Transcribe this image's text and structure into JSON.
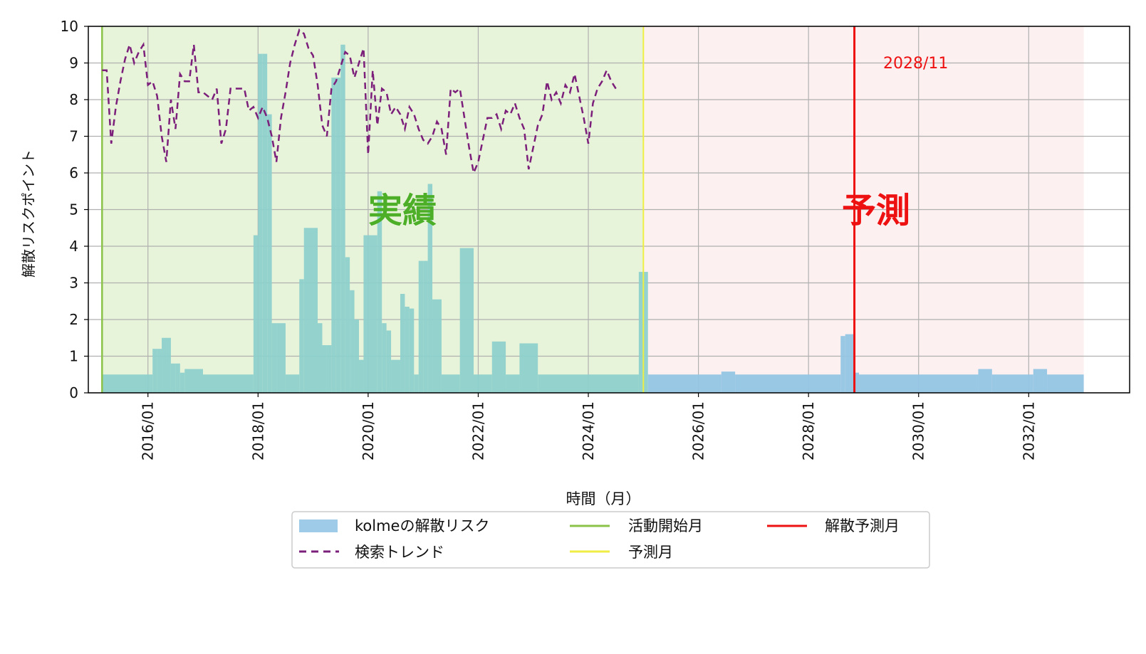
{
  "chart_data": {
    "type": "bar",
    "ylabel": "解散リスクポイント",
    "xlabel": "時間（月）",
    "ylim": [
      0,
      10
    ],
    "xlim": [
      "2014-12",
      "2033-11"
    ],
    "yticks": [
      0,
      1,
      2,
      3,
      4,
      5,
      6,
      7,
      8,
      9,
      10
    ],
    "xticks": [
      "2016/01",
      "2018/01",
      "2020/01",
      "2022/01",
      "2024/01",
      "2026/01",
      "2028/01",
      "2030/01",
      "2032/01"
    ],
    "grid": true,
    "legend_position": "bottom-center",
    "region_labels": {
      "actual": "実績",
      "forecast": "予測"
    },
    "activity_start_month": "2015-03",
    "forecast_start_month": "2025-01",
    "dissolution_forecast_month": "2028-11",
    "dissolution_forecast_label": "2028/11",
    "colors": {
      "actual_region": "#e8f4da",
      "forecast_region": "#fdf0f0",
      "actual_bar": "#8ed0cc",
      "forecast_bar": "#94c5e4",
      "trend_line": "#7b1f7b",
      "activity_start_line": "#8bc34a",
      "forecast_start_line": "#eeee44",
      "dissolution_line": "#ee1111",
      "actual_label": "#4caf27",
      "forecast_label": "#ee1111"
    },
    "legend": [
      {
        "key": "risk",
        "label": "kolmeの解散リスク"
      },
      {
        "key": "trend",
        "label": "検索トレンド"
      },
      {
        "key": "start",
        "label": "活動開始月"
      },
      {
        "key": "forecast",
        "label": "予測月"
      },
      {
        "key": "dissolution",
        "label": "解散予測月"
      }
    ],
    "risk_series": {
      "name": "kolmeの解散リスク",
      "segments": [
        {
          "from": "2015-03",
          "to": "2016-01",
          "value": 0.5
        },
        {
          "from": "2016-02",
          "value": 1.2
        },
        {
          "from": "2016-03",
          "value": 1.2
        },
        {
          "from": "2016-04",
          "value": 1.5
        },
        {
          "from": "2016-05",
          "value": 1.5
        },
        {
          "from": "2016-06",
          "value": 0.8
        },
        {
          "from": "2016-07",
          "value": 0.8
        },
        {
          "from": "2016-08",
          "value": 0.55
        },
        {
          "from": "2016-09",
          "to": "2016-12",
          "value": 0.65
        },
        {
          "from": "2017-01",
          "to": "2017-11",
          "value": 0.5
        },
        {
          "from": "2017-12",
          "value": 4.3
        },
        {
          "from": "2018-01",
          "value": 9.25
        },
        {
          "from": "2018-02",
          "value": 9.25
        },
        {
          "from": "2018-03",
          "value": 7.6
        },
        {
          "from": "2018-04",
          "value": 1.9
        },
        {
          "from": "2018-05",
          "to": "2018-06",
          "value": 1.9
        },
        {
          "from": "2018-07",
          "to": "2018-09",
          "value": 0.5
        },
        {
          "from": "2018-10",
          "value": 3.1
        },
        {
          "from": "2018-11",
          "to": "2019-01",
          "value": 4.5
        },
        {
          "from": "2019-02",
          "value": 1.9
        },
        {
          "from": "2019-03",
          "value": 1.3
        },
        {
          "from": "2019-04",
          "value": 1.3
        },
        {
          "from": "2019-05",
          "value": 8.6
        },
        {
          "from": "2019-06",
          "value": 8.6
        },
        {
          "from": "2019-07",
          "value": 9.5
        },
        {
          "from": "2019-08",
          "value": 3.7
        },
        {
          "from": "2019-09",
          "value": 2.8
        },
        {
          "from": "2019-10",
          "value": 2.0
        },
        {
          "from": "2019-11",
          "value": 0.9
        },
        {
          "from": "2019-12",
          "to": "2020-02",
          "value": 4.3
        },
        {
          "from": "2020-03",
          "value": 5.5
        },
        {
          "from": "2020-04",
          "value": 1.9
        },
        {
          "from": "2020-05",
          "value": 1.7
        },
        {
          "from": "2020-06",
          "value": 0.9
        },
        {
          "from": "2020-07",
          "value": 0.9
        },
        {
          "from": "2020-08",
          "value": 2.7
        },
        {
          "from": "2020-09",
          "value": 2.35
        },
        {
          "from": "2020-10",
          "value": 2.3
        },
        {
          "from": "2020-11",
          "value": 0.5
        },
        {
          "from": "2020-12",
          "value": 3.6
        },
        {
          "from": "2021-01",
          "value": 3.6
        },
        {
          "from": "2021-02",
          "value": 5.7
        },
        {
          "from": "2021-03",
          "value": 2.55
        },
        {
          "from": "2021-04",
          "value": 2.55
        },
        {
          "from": "2021-05",
          "to": "2021-08",
          "value": 0.5
        },
        {
          "from": "2021-09",
          "to": "2021-11",
          "value": 3.95
        },
        {
          "from": "2021-12",
          "to": "2022-03",
          "value": 0.5
        },
        {
          "from": "2022-04",
          "to": "2022-06",
          "value": 1.4
        },
        {
          "from": "2022-07",
          "to": "2022-09",
          "value": 0.5
        },
        {
          "from": "2022-10",
          "to": "2023-01",
          "value": 1.35
        },
        {
          "from": "2023-02",
          "to": "2024-11",
          "value": 0.5
        },
        {
          "from": "2024-12",
          "to": "2025-01",
          "value": 3.3
        },
        {
          "from": "2025-02",
          "to": "2026-05",
          "value": 0.5
        },
        {
          "from": "2026-06",
          "to": "2026-08",
          "value": 0.58
        },
        {
          "from": "2026-09",
          "to": "2028-07",
          "value": 0.5
        },
        {
          "from": "2028-08",
          "value": 1.55
        },
        {
          "from": "2028-09",
          "to": "2028-10",
          "value": 1.6
        },
        {
          "from": "2028-11",
          "value": 0.55
        },
        {
          "from": "2028-12",
          "to": "2031-01",
          "value": 0.5
        },
        {
          "from": "2031-02",
          "to": "2031-04",
          "value": 0.65
        },
        {
          "from": "2031-05",
          "to": "2032-01",
          "value": 0.5
        },
        {
          "from": "2032-02",
          "to": "2032-04",
          "value": 0.65
        },
        {
          "from": "2032-05",
          "to": "2032-12",
          "value": 0.5
        }
      ]
    },
    "trend_series": {
      "name": "検索トレンド",
      "points": [
        [
          "2015-03",
          8.8
        ],
        [
          "2015-04",
          8.8
        ],
        [
          "2015-05",
          6.8
        ],
        [
          "2015-06",
          7.8
        ],
        [
          "2015-07",
          8.5
        ],
        [
          "2015-08",
          9.1
        ],
        [
          "2015-09",
          9.5
        ],
        [
          "2015-10",
          9.0
        ],
        [
          "2015-11",
          9.3
        ],
        [
          "2015-12",
          9.5
        ],
        [
          "2016-01",
          8.4
        ],
        [
          "2016-02",
          8.5
        ],
        [
          "2016-03",
          8.1
        ],
        [
          "2016-04",
          7.0
        ],
        [
          "2016-05",
          6.3
        ],
        [
          "2016-06",
          8.0
        ],
        [
          "2016-07",
          7.2
        ],
        [
          "2016-08",
          8.7
        ],
        [
          "2016-09",
          8.5
        ],
        [
          "2016-10",
          8.5
        ],
        [
          "2016-11",
          9.5
        ],
        [
          "2016-12",
          8.2
        ],
        [
          "2017-01",
          8.2
        ],
        [
          "2017-02",
          8.1
        ],
        [
          "2017-03",
          8.0
        ],
        [
          "2017-04",
          8.3
        ],
        [
          "2017-05",
          6.8
        ],
        [
          "2017-06",
          7.2
        ],
        [
          "2017-07",
          8.3
        ],
        [
          "2017-08",
          8.3
        ],
        [
          "2017-09",
          8.3
        ],
        [
          "2017-10",
          8.3
        ],
        [
          "2017-11",
          7.7
        ],
        [
          "2017-12",
          7.8
        ],
        [
          "2018-01",
          7.5
        ],
        [
          "2018-02",
          7.8
        ],
        [
          "2018-03",
          7.5
        ],
        [
          "2018-04",
          7.0
        ],
        [
          "2018-05",
          6.3
        ],
        [
          "2018-06",
          7.5
        ],
        [
          "2018-07",
          8.2
        ],
        [
          "2018-08",
          9.0
        ],
        [
          "2018-09",
          9.5
        ],
        [
          "2018-10",
          9.9
        ],
        [
          "2018-11",
          9.8
        ],
        [
          "2018-12",
          9.4
        ],
        [
          "2019-01",
          9.2
        ],
        [
          "2019-02",
          8.4
        ],
        [
          "2019-03",
          7.3
        ],
        [
          "2019-04",
          7.0
        ],
        [
          "2019-05",
          8.3
        ],
        [
          "2019-06",
          8.5
        ],
        [
          "2019-07",
          8.9
        ],
        [
          "2019-08",
          9.3
        ],
        [
          "2019-09",
          9.2
        ],
        [
          "2019-10",
          8.6
        ],
        [
          "2019-11",
          9.0
        ],
        [
          "2019-12",
          9.4
        ],
        [
          "2020-01",
          6.5
        ],
        [
          "2020-02",
          8.8
        ],
        [
          "2020-03",
          7.3
        ],
        [
          "2020-04",
          8.3
        ],
        [
          "2020-05",
          8.2
        ],
        [
          "2020-06",
          7.6
        ],
        [
          "2020-07",
          7.8
        ],
        [
          "2020-08",
          7.6
        ],
        [
          "2020-09",
          7.2
        ],
        [
          "2020-10",
          7.8
        ],
        [
          "2020-11",
          7.6
        ],
        [
          "2020-12",
          7.2
        ],
        [
          "2021-01",
          6.9
        ],
        [
          "2021-02",
          6.8
        ],
        [
          "2021-03",
          7.0
        ],
        [
          "2021-04",
          7.4
        ],
        [
          "2021-05",
          7.2
        ],
        [
          "2021-06",
          6.5
        ],
        [
          "2021-07",
          8.3
        ],
        [
          "2021-08",
          8.2
        ],
        [
          "2021-09",
          8.3
        ],
        [
          "2021-10",
          7.5
        ],
        [
          "2021-11",
          6.7
        ],
        [
          "2021-12",
          6.0
        ],
        [
          "2022-01",
          6.3
        ],
        [
          "2022-02",
          6.9
        ],
        [
          "2022-03",
          7.5
        ],
        [
          "2022-04",
          7.5
        ],
        [
          "2022-05",
          7.6
        ],
        [
          "2022-06",
          7.2
        ],
        [
          "2022-07",
          7.7
        ],
        [
          "2022-08",
          7.6
        ],
        [
          "2022-09",
          7.9
        ],
        [
          "2022-10",
          7.5
        ],
        [
          "2022-11",
          7.2
        ],
        [
          "2022-12",
          6.1
        ],
        [
          "2023-01",
          6.7
        ],
        [
          "2023-02",
          7.3
        ],
        [
          "2023-03",
          7.6
        ],
        [
          "2023-04",
          8.5
        ],
        [
          "2023-05",
          8.0
        ],
        [
          "2023-06",
          8.2
        ],
        [
          "2023-07",
          7.9
        ],
        [
          "2023-08",
          8.4
        ],
        [
          "2023-09",
          8.2
        ],
        [
          "2023-10",
          8.7
        ],
        [
          "2023-11",
          8.1
        ],
        [
          "2023-12",
          7.5
        ],
        [
          "2024-01",
          6.8
        ],
        [
          "2024-02",
          7.9
        ],
        [
          "2024-03",
          8.3
        ],
        [
          "2024-04",
          8.5
        ],
        [
          "2024-05",
          8.8
        ],
        [
          "2024-06",
          8.5
        ],
        [
          "2024-07",
          8.3
        ]
      ]
    }
  }
}
